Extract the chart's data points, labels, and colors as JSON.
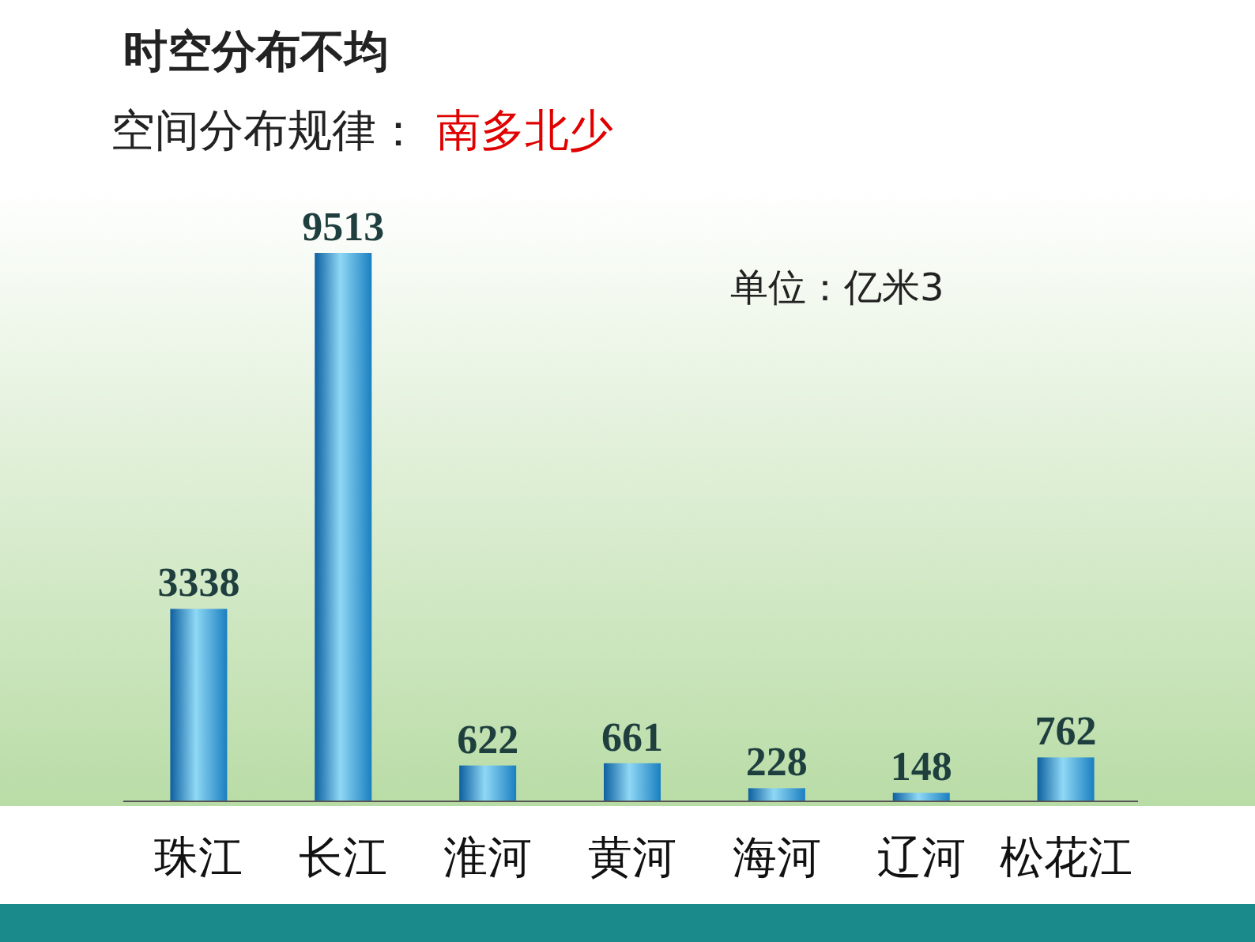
{
  "chart_data": {
    "type": "bar",
    "title": "时空分布不均",
    "subtitle": "空间分布规律：南多北少",
    "categories": [
      "珠江",
      "长江",
      "淮河",
      "黄河",
      "海河",
      "辽河",
      "松花江"
    ],
    "values": [
      3338,
      9513,
      622,
      661,
      228,
      148,
      762
    ],
    "color": "#1a7fc0",
    "data_labels": true,
    "annotations": [
      "单位：亿米3"
    ]
  }
}
